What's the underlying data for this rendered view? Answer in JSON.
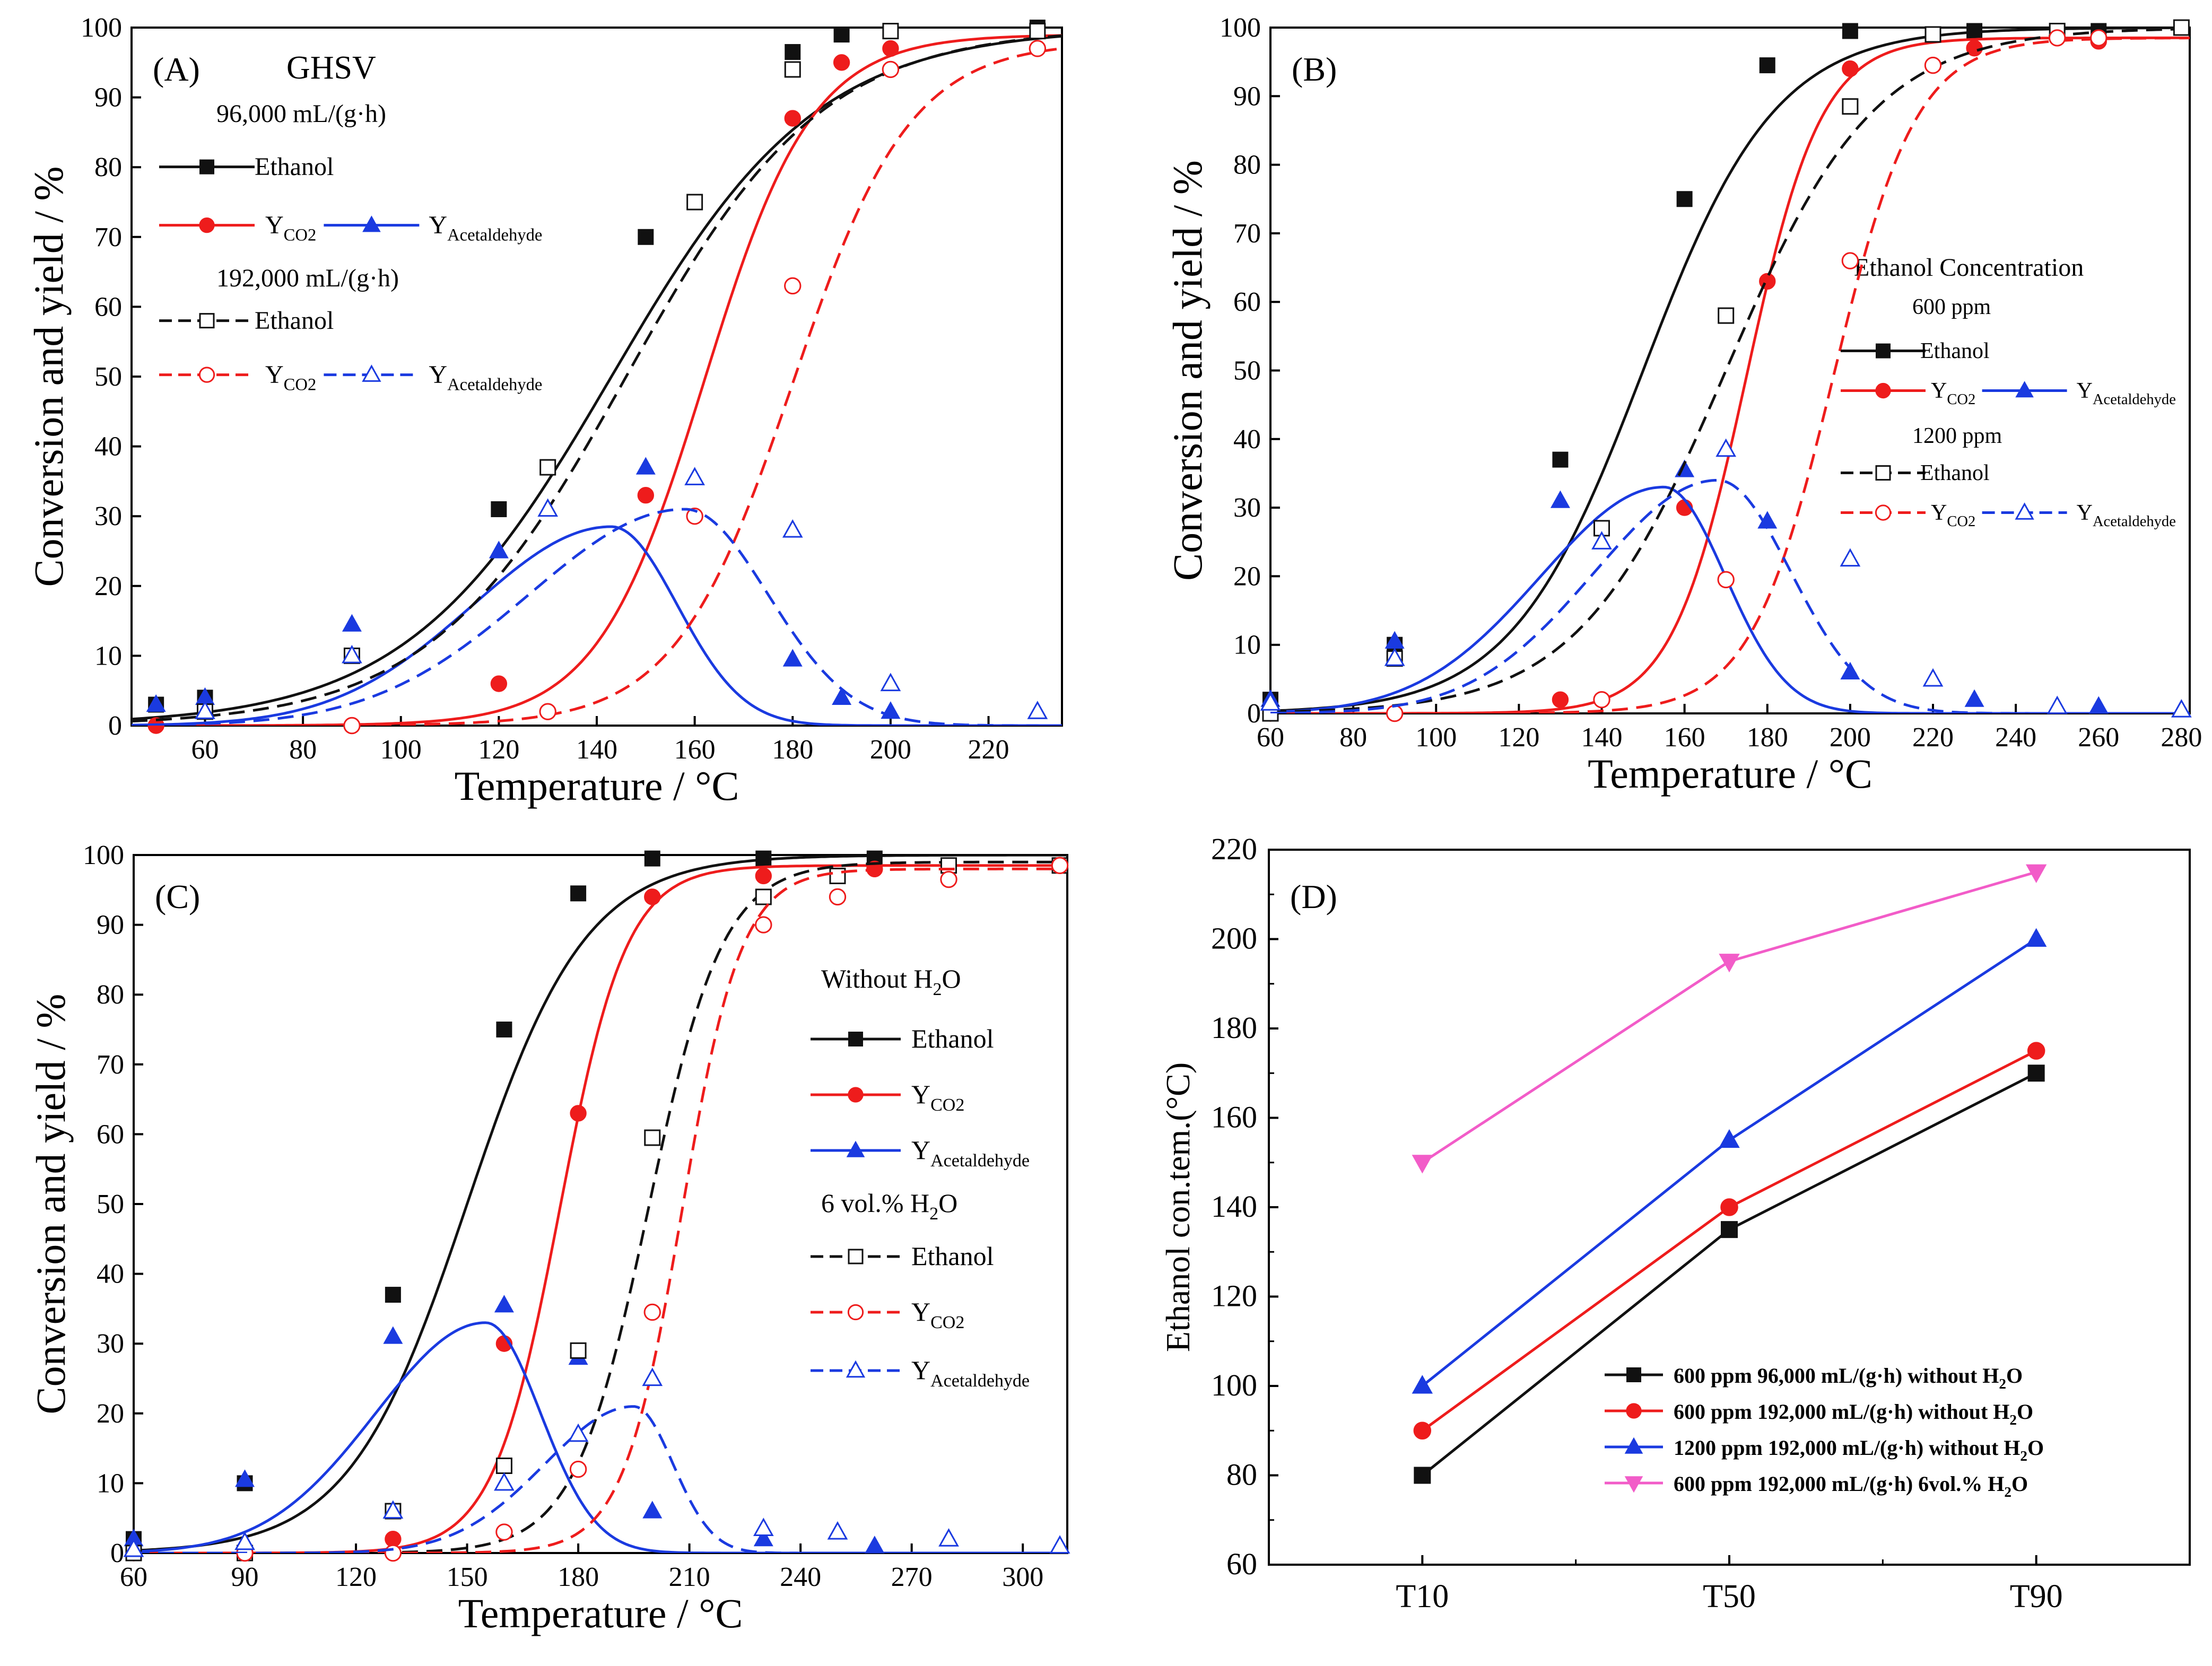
{
  "colors": {
    "black": "#111111",
    "red": "#ee1c1c",
    "blue": "#1a3ae0",
    "magenta": "#f25cc8"
  },
  "chart_data": [
    {
      "id": "A",
      "type": "line",
      "panel_label": "(A)",
      "legend_title": "GHSV",
      "xlabel": "Temperature / °C",
      "ylabel": "Conversion and yield / %",
      "xlim": [
        45,
        235
      ],
      "ylim": [
        0,
        100
      ],
      "xticks": [
        60,
        80,
        100,
        120,
        140,
        160,
        180,
        200,
        220
      ],
      "yticks": [
        0,
        10,
        20,
        30,
        40,
        50,
        60,
        70,
        80,
        90,
        100
      ],
      "groups": [
        {
          "label": "96,000 mL/(g·h)",
          "style": "solid",
          "markers": "filled",
          "series": [
            {
              "name": "Ethanol",
              "color": "black",
              "marker": "square",
              "x": [
                50,
                60,
                90,
                120,
                150,
                180,
                190,
                200,
                230
              ],
              "y": [
                3,
                4,
                10,
                31,
                70,
                96.5,
                99,
                99.5,
                100
              ],
              "fit": {
                "kind": "logistic",
                "a": 0,
                "b": 100,
                "x0": 143,
                "w": 21
              }
            },
            {
              "name": "Y_CO2",
              "color": "red",
              "marker": "circle",
              "x": [
                50,
                90,
                120,
                150,
                180,
                190,
                200
              ],
              "y": [
                0,
                0,
                6,
                33,
                87,
                95,
                97
              ],
              "fit": {
                "kind": "logistic",
                "a": 0,
                "b": 99,
                "x0": 162,
                "w": 11
              }
            },
            {
              "name": "Y_Acetaldehyde",
              "color": "blue",
              "marker": "triangle",
              "x": [
                50,
                60,
                90,
                120,
                150,
                180,
                190,
                200
              ],
              "y": [
                3,
                4,
                14.5,
                25,
                37,
                9.5,
                4,
                2
              ],
              "fit": {
                "kind": "peak",
                "a": 0,
                "p": 28.5,
                "xp": 143,
                "s1": 40,
                "s2": 19
              }
            }
          ]
        },
        {
          "label": "192,000 mL/(g·h)",
          "style": "dashed",
          "markers": "open",
          "series": [
            {
              "name": "Ethanol",
              "color": "black",
              "marker": "square",
              "x": [
                60,
                90,
                130,
                160,
                180,
                200,
                230
              ],
              "y": [
                2,
                10,
                37,
                75,
                94,
                99.5,
                99.5
              ],
              "fit": {
                "kind": "logistic",
                "a": 0,
                "b": 100,
                "x0": 146,
                "w": 20
              }
            },
            {
              "name": "Y_CO2",
              "color": "red",
              "marker": "circle",
              "x": [
                90,
                130,
                160,
                180,
                200,
                230
              ],
              "y": [
                0,
                2,
                30,
                63,
                94,
                97
              ],
              "fit": {
                "kind": "logistic",
                "a": 0,
                "b": 98,
                "x0": 180,
                "w": 12
              }
            },
            {
              "name": "Y_Acetaldehyde",
              "color": "blue",
              "marker": "triangle",
              "x": [
                60,
                90,
                130,
                160,
                180,
                200,
                230
              ],
              "y": [
                2,
                10,
                31,
                35.5,
                28,
                6,
                2
              ],
              "fit": {
                "kind": "peak",
                "a": 0,
                "p": 31,
                "xp": 158,
                "s1": 45,
                "s2": 24
              }
            }
          ]
        }
      ]
    },
    {
      "id": "B",
      "type": "line",
      "panel_label": "(B)",
      "legend_title": "Ethanol Concentration",
      "xlabel": "Temperature / °C",
      "ylabel": "Conversion and yield / %",
      "xlim": [
        60,
        282
      ],
      "ylim": [
        0,
        100
      ],
      "xticks": [
        60,
        80,
        100,
        120,
        140,
        160,
        180,
        200,
        220,
        240,
        260,
        280
      ],
      "yticks": [
        0,
        10,
        20,
        30,
        40,
        50,
        60,
        70,
        80,
        90,
        100
      ],
      "groups": [
        {
          "label": "600 ppm",
          "style": "solid",
          "markers": "filled",
          "series": [
            {
              "name": "Ethanol",
              "color": "black",
              "marker": "square",
              "x": [
                60,
                90,
                130,
                160,
                180,
                200,
                230,
                260
              ],
              "y": [
                2,
                10,
                37,
                75,
                94.5,
                99.5,
                99.5,
                99.5
              ],
              "fit": {
                "kind": "logistic",
                "a": 0,
                "b": 100,
                "x0": 150,
                "w": 16
              }
            },
            {
              "name": "Y_CO2",
              "color": "red",
              "marker": "circle",
              "x": [
                60,
                90,
                130,
                160,
                180,
                200,
                230,
                260
              ],
              "y": [
                0,
                0,
                2,
                30,
                63,
                94,
                97,
                98
              ],
              "fit": {
                "kind": "logistic",
                "a": 0,
                "b": 98.5,
                "x0": 175,
                "w": 9
              }
            },
            {
              "name": "Y_Acetaldehyde",
              "color": "blue",
              "marker": "triangle",
              "x": [
                60,
                90,
                130,
                160,
                180,
                200,
                230,
                260
              ],
              "y": [
                2,
                10.5,
                31,
                35.5,
                28,
                6,
                2,
                1
              ],
              "fit": {
                "kind": "peak",
                "a": 0,
                "p": 33,
                "xp": 155,
                "s1": 42,
                "s2": 21
              }
            }
          ]
        },
        {
          "label": "1200 ppm",
          "style": "dashed",
          "markers": "open",
          "series": [
            {
              "name": "Ethanol",
              "color": "black",
              "marker": "square",
              "x": [
                60,
                90,
                140,
                170,
                200,
                220,
                250,
                280
              ],
              "y": [
                0,
                8,
                27,
                58,
                88.5,
                99,
                99.5,
                100
              ],
              "fit": {
                "kind": "logistic",
                "a": 0,
                "b": 100,
                "x0": 170,
                "w": 18
              }
            },
            {
              "name": "Y_CO2",
              "color": "red",
              "marker": "circle",
              "x": [
                90,
                140,
                170,
                200,
                220,
                250,
                260
              ],
              "y": [
                0,
                2,
                19.5,
                66,
                94.5,
                98.5,
                98.5
              ],
              "fit": {
                "kind": "logistic",
                "a": 0,
                "b": 98.5,
                "x0": 196,
                "w": 10
              }
            },
            {
              "name": "Y_Acetaldehyde",
              "color": "blue",
              "marker": "triangle",
              "x": [
                60,
                90,
                140,
                170,
                200,
                220,
                250,
                280
              ],
              "y": [
                1.5,
                8,
                25,
                38.5,
                22.5,
                5,
                1,
                0.5
              ],
              "fit": {
                "kind": "peak",
                "a": 0,
                "p": 34,
                "xp": 168,
                "s1": 42,
                "s2": 25
              }
            }
          ]
        }
      ]
    },
    {
      "id": "C",
      "type": "line",
      "panel_label": "(C)",
      "xlabel": "Temperature / °C",
      "ylabel": "Conversion and yield / %",
      "xlim": [
        60,
        312
      ],
      "ylim": [
        0,
        100
      ],
      "xticks": [
        60,
        90,
        120,
        150,
        180,
        210,
        240,
        270,
        300
      ],
      "yticks": [
        0,
        10,
        20,
        30,
        40,
        50,
        60,
        70,
        80,
        90,
        100
      ],
      "groups": [
        {
          "label": "Without H2O",
          "style": "solid",
          "markers": "filled",
          "series": [
            {
              "name": "Ethanol",
              "color": "black",
              "marker": "square",
              "x": [
                60,
                90,
                130,
                160,
                180,
                200,
                230,
                260
              ],
              "y": [
                2,
                10,
                37,
                75,
                94.5,
                99.5,
                99.5,
                99.5
              ],
              "fit": {
                "kind": "logistic",
                "a": 0,
                "b": 100,
                "x0": 150,
                "w": 16
              }
            },
            {
              "name": "Y_CO2",
              "color": "red",
              "marker": "circle",
              "x": [
                60,
                90,
                130,
                160,
                180,
                200,
                230,
                260
              ],
              "y": [
                0,
                0,
                2,
                30,
                63,
                94,
                97,
                98
              ],
              "fit": {
                "kind": "logistic",
                "a": 0,
                "b": 98.5,
                "x0": 175,
                "w": 9
              }
            },
            {
              "name": "Y_Acetaldehyde",
              "color": "blue",
              "marker": "triangle",
              "x": [
                60,
                90,
                130,
                160,
                180,
                200,
                230,
                260
              ],
              "y": [
                2,
                10.5,
                31,
                35.5,
                28,
                6,
                2,
                1
              ],
              "fit": {
                "kind": "peak",
                "a": 0,
                "p": 33,
                "xp": 155,
                "s1": 42,
                "s2": 21
              }
            }
          ]
        },
        {
          "label": "6 vol.% H2O",
          "style": "dashed",
          "markers": "open",
          "series": [
            {
              "name": "Ethanol",
              "color": "black",
              "marker": "square",
              "x": [
                60,
                90,
                130,
                160,
                180,
                200,
                230,
                250,
                280,
                310
              ],
              "y": [
                0,
                0,
                6,
                12.5,
                29,
                59.5,
                94,
                97,
                98.5,
                98.5
              ],
              "fit": {
                "kind": "logistic",
                "a": 0,
                "b": 99,
                "x0": 199,
                "w": 10
              }
            },
            {
              "name": "Y_CO2",
              "color": "red",
              "marker": "circle",
              "x": [
                90,
                130,
                160,
                180,
                200,
                230,
                250,
                280,
                310
              ],
              "y": [
                0,
                0,
                3,
                12,
                34.5,
                90,
                94,
                96.5,
                98.5
              ],
              "fit": {
                "kind": "logistic",
                "a": 0,
                "b": 98,
                "x0": 208,
                "w": 8
              }
            },
            {
              "name": "Y_Acetaldehyde",
              "color": "blue",
              "marker": "triangle",
              "x": [
                60,
                90,
                130,
                160,
                180,
                200,
                230,
                250,
                280,
                310
              ],
              "y": [
                0.5,
                1.5,
                6,
                10,
                17,
                25,
                3.5,
                3,
                2,
                1
              ],
              "fit": {
                "kind": "peak",
                "a": 0,
                "p": 21,
                "xp": 195,
                "s1": 34,
                "s2": 15
              }
            }
          ]
        }
      ]
    },
    {
      "id": "D",
      "type": "line",
      "panel_label": "(D)",
      "xlabel": "",
      "ylabel": "Ethanol con.tem.(°C)",
      "categories": [
        "T10",
        "T50",
        "T90"
      ],
      "ylim": [
        60,
        220
      ],
      "yticks": [
        60,
        80,
        100,
        120,
        140,
        160,
        180,
        200,
        220
      ],
      "series": [
        {
          "name": "600 ppm 96,000 mL/(g·h) without H2O",
          "color": "black",
          "marker": "square",
          "values": [
            80,
            135,
            170
          ]
        },
        {
          "name": "600 ppm 192,000 mL/(g·h) without H2O",
          "color": "red",
          "marker": "circle",
          "values": [
            90,
            140,
            175
          ]
        },
        {
          "name": "1200 ppm 192,000 mL/(g·h) without H2O",
          "color": "blue",
          "marker": "triangle",
          "values": [
            100,
            155,
            200
          ]
        },
        {
          "name": "600 ppm 192,000 mL/(g·h) 6vol.% H2O",
          "color": "magenta",
          "marker": "triangle-down",
          "values": [
            150,
            195,
            215
          ]
        }
      ]
    }
  ]
}
